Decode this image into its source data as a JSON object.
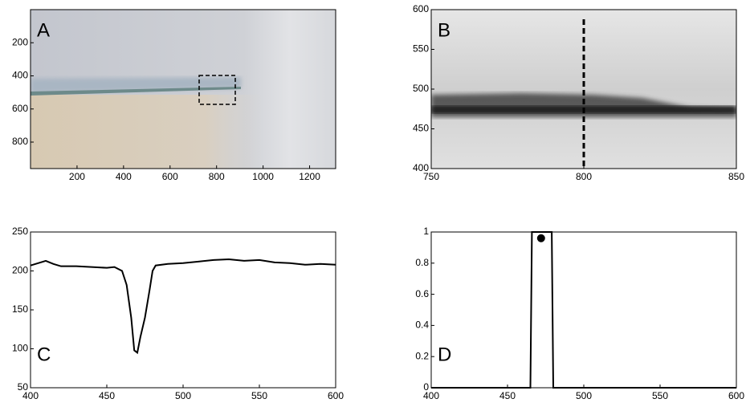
{
  "chart_data": [
    {
      "type": "image",
      "label": "A",
      "xlim": [
        0,
        1312
      ],
      "ylim": [
        960,
        0
      ],
      "xticks": [
        200,
        400,
        600,
        800,
        1000,
        1200
      ],
      "yticks": [
        200,
        400,
        600,
        800
      ]
    },
    {
      "type": "image",
      "label": "B",
      "xlim": [
        750,
        850
      ],
      "ylim": [
        400,
        600
      ],
      "xticks": [
        750,
        800,
        850
      ],
      "yticks": [
        400,
        450,
        500,
        550,
        600
      ],
      "vline": 800
    },
    {
      "type": "line",
      "label": "C",
      "xlim": [
        400,
        600
      ],
      "ylim": [
        50,
        250
      ],
      "xticks": [
        400,
        450,
        500,
        550,
        600
      ],
      "yticks": [
        50,
        100,
        150,
        200,
        250
      ],
      "color": "#000000",
      "x": [
        400,
        405,
        410,
        415,
        420,
        430,
        440,
        450,
        455,
        460,
        463,
        466,
        468,
        470,
        472,
        475,
        478,
        480,
        482,
        490,
        500,
        510,
        520,
        530,
        540,
        550,
        560,
        570,
        580,
        590,
        600
      ],
      "values": [
        207,
        210,
        213,
        209,
        206,
        206,
        205,
        204,
        205,
        200,
        182,
        140,
        98,
        95,
        115,
        140,
        175,
        200,
        207,
        209,
        210,
        212,
        214,
        215,
        213,
        214,
        211,
        210,
        208,
        209,
        208
      ]
    },
    {
      "type": "line",
      "label": "D",
      "xlim": [
        400,
        600
      ],
      "ylim": [
        0,
        1
      ],
      "xticks": [
        400,
        450,
        500,
        550,
        600
      ],
      "yticks": [
        0,
        0.2,
        0.4,
        0.6,
        0.8,
        1
      ],
      "color": "#000000",
      "x": [
        400,
        465,
        466,
        479,
        480,
        600
      ],
      "values": [
        0,
        0,
        1,
        1,
        0,
        0
      ],
      "point": {
        "x": 472,
        "y": 0.96
      }
    }
  ]
}
